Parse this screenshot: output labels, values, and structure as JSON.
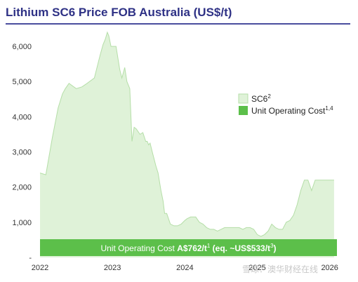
{
  "chart_data": {
    "type": "area",
    "title": "Lithium SC6 Price FOB Australia (US$/t)",
    "xlabel": "",
    "ylabel": "",
    "x_tick_labels": [
      "2022",
      "2023",
      "2024",
      "2025",
      "2026"
    ],
    "y_tick_labels": [
      "-",
      "1,000",
      "2,000",
      "3,000",
      "4,000",
      "5,000",
      "6,000"
    ],
    "ylim": [
      0,
      6600
    ],
    "xlim": [
      2022.0,
      2026.1
    ],
    "grid": false,
    "legend_position": "right",
    "legend": [
      {
        "label": "SC6",
        "sup": "2"
      },
      {
        "label": "Unit Operating Cost",
        "sup": "1,4"
      }
    ],
    "colors": {
      "sc6_fill": "#dff2d8",
      "sc6_line": "#b5dea8",
      "cost_band": "#5cbf4a",
      "title": "#2e3185"
    },
    "series": [
      {
        "name": "SC6",
        "x": [
          2022.0,
          2022.08,
          2022.17,
          2022.25,
          2022.31,
          2022.35,
          2022.4,
          2022.5,
          2022.58,
          2022.65,
          2022.75,
          2022.83,
          2022.87,
          2022.9,
          2022.93,
          2022.95,
          2022.98,
          2023.0,
          2023.05,
          2023.1,
          2023.13,
          2023.17,
          2023.2,
          2023.24,
          2023.27,
          2023.3,
          2023.33,
          2023.38,
          2023.42,
          2023.46,
          2023.48,
          2023.5,
          2023.52,
          2023.55,
          2023.6,
          2023.63,
          2023.67,
          2023.7,
          2023.72,
          2023.75,
          2023.8,
          2023.85,
          2023.9,
          2023.95,
          2024.0,
          2024.03,
          2024.08,
          2024.15,
          2024.2,
          2024.25,
          2024.3,
          2024.35,
          2024.4,
          2024.45,
          2024.5,
          2024.55,
          2024.6,
          2024.65,
          2024.7,
          2024.75,
          2024.8,
          2024.85,
          2024.9,
          2024.95,
          2025.0,
          2025.05,
          2025.1,
          2025.15,
          2025.2,
          2025.25,
          2025.3,
          2025.35,
          2025.4,
          2025.45,
          2025.5,
          2025.55,
          2025.6,
          2025.65,
          2025.7,
          2025.75,
          2025.8,
          2025.85,
          2025.9,
          2025.94,
          2025.97,
          2026.0,
          2026.02,
          2026.04,
          2026.06
        ],
        "values": [
          2400,
          2350,
          3400,
          4250,
          4650,
          4800,
          4950,
          4800,
          4850,
          4950,
          5100,
          5750,
          6050,
          6200,
          6400,
          6300,
          6000,
          6000,
          6000,
          5350,
          5100,
          5400,
          5000,
          4800,
          3300,
          3700,
          3650,
          3500,
          3550,
          3300,
          3300,
          3200,
          3250,
          3000,
          2600,
          2400,
          1900,
          1600,
          1250,
          1250,
          950,
          900,
          900,
          950,
          1050,
          1100,
          1150,
          1150,
          1000,
          950,
          850,
          800,
          800,
          750,
          800,
          850,
          850,
          850,
          850,
          850,
          800,
          850,
          850,
          800,
          650,
          600,
          650,
          750,
          950,
          850,
          800,
          800,
          1000,
          1050,
          1200,
          1500,
          1900,
          2200,
          2200,
          1900,
          2200,
          2200,
          2200,
          2200,
          2200,
          2200,
          2200,
          2200,
          2200
        ]
      },
      {
        "name": "Unit Operating Cost",
        "values": [
          533
        ]
      }
    ],
    "annotation": {
      "text_prefix": "Unit Operating Cost ",
      "text_bold": "A$762/t",
      "sup1": "1",
      "text_mid": " (eq. ~US$533/t",
      "sup2": "3",
      "text_suffix": ")"
    }
  },
  "watermark": "雪球：澳华财经在线"
}
